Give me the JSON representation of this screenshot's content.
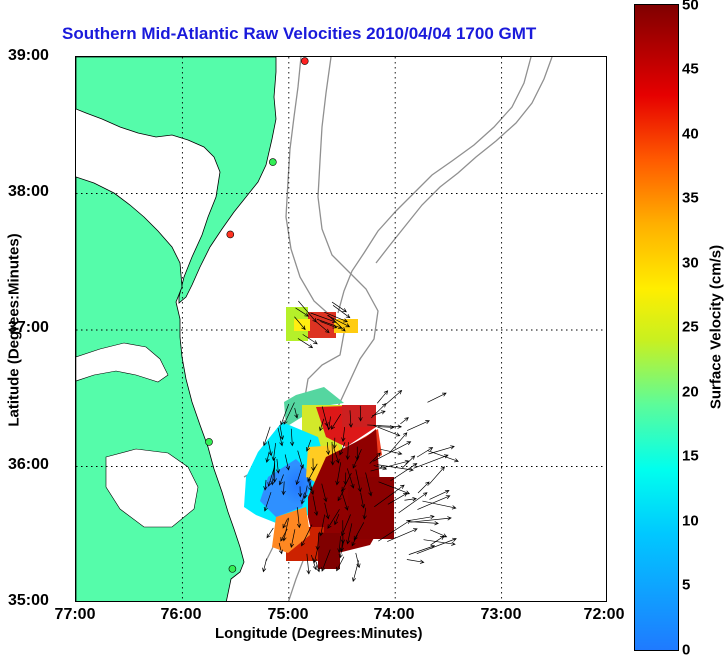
{
  "title": "Southern Mid-Atlantic Raw Velocities 2010/04/04 1700 GMT",
  "map": {
    "x_label": "Longitude (Degrees:Minutes)",
    "y_label": "Latitude (Degrees:Minutes)",
    "longitude_ticks": [
      "77:00",
      "76:00",
      "75:00",
      "74:00",
      "73:00",
      "72:00"
    ],
    "latitude_ticks": [
      "39:00",
      "38:00",
      "37:00",
      "36:00",
      "35:00"
    ],
    "longitude_range": [
      -77,
      -72
    ],
    "latitude_range": [
      35,
      39
    ],
    "grid": "dotted",
    "land_color": "#55fcaa",
    "bathymetry_color": "#909090"
  },
  "colorbar": {
    "label": "Surface Velocity (cm/s)",
    "min": 0,
    "max": 50,
    "ticks": [
      "50",
      "45",
      "40",
      "35",
      "30",
      "25",
      "20",
      "15",
      "10",
      "5",
      "0"
    ]
  },
  "stations": [
    {
      "lat": 38.97,
      "lon": -74.85,
      "color": "#ff2222"
    },
    {
      "lat": 38.23,
      "lon": -75.15,
      "color": "#33ee55"
    },
    {
      "lat": 37.7,
      "lon": -75.55,
      "color": "#ff3322"
    },
    {
      "lat": 36.18,
      "lon": -75.75,
      "color": "#33ee55"
    },
    {
      "lat": 35.25,
      "lon": -75.53,
      "color": "#33ee55"
    }
  ]
}
